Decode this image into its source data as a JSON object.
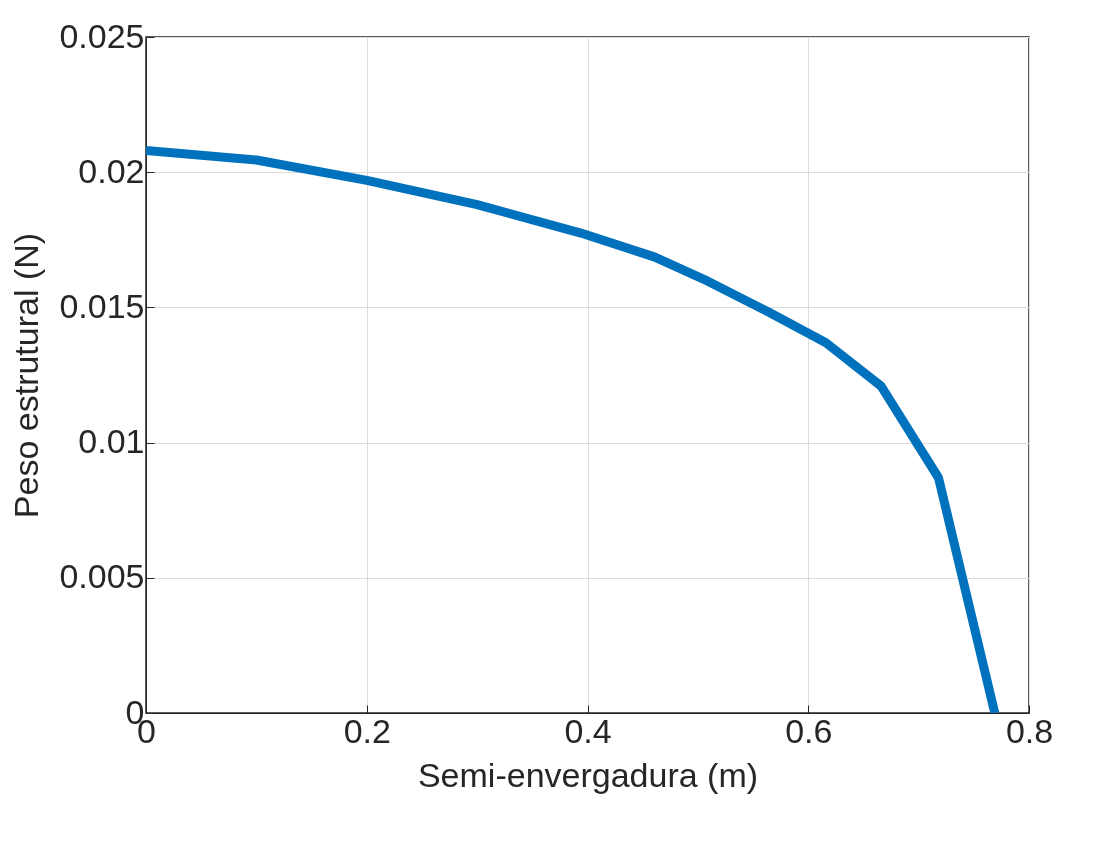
{
  "chart_data": {
    "type": "line",
    "xlabel": "Semi-envergadura (m)",
    "ylabel": "Peso estrutural (N)",
    "x": [
      0,
      0.1,
      0.2,
      0.3,
      0.394,
      0.461,
      0.509,
      0.564,
      0.616,
      0.666,
      0.718,
      0.769
    ],
    "series": [
      {
        "color": "#0072bd",
        "values": [
          0.0208,
          0.02045,
          0.0197,
          0.0188,
          0.01775,
          0.01686,
          0.01597,
          0.01483,
          0.01369,
          0.01209,
          0.0087,
          0
        ]
      }
    ],
    "xlim": [
      0,
      0.8
    ],
    "xticks": [
      0,
      0.2,
      0.4,
      0.6,
      0.8
    ],
    "ylim": [
      0,
      0.025
    ],
    "yticks": [
      0,
      0.005,
      0.01,
      0.015,
      0.02,
      0.025
    ],
    "grid": true,
    "marker": "none",
    "line_style": "solid"
  }
}
